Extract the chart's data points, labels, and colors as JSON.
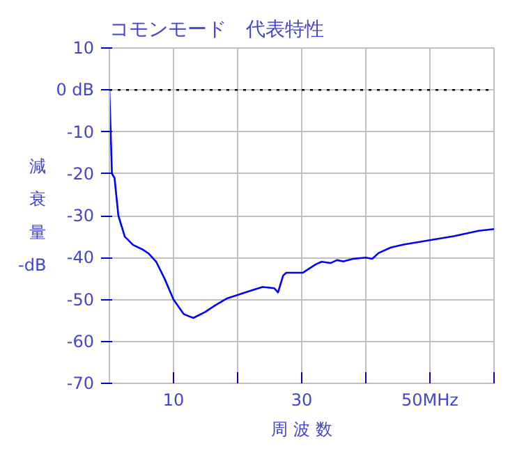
{
  "chart_data": {
    "type": "line",
    "title": "コモンモード　代表特性",
    "xlabel": "周 波 数",
    "ylabel": "減衰量 -dB",
    "x": [
      0,
      0.2,
      0.4,
      0.8,
      1.4,
      2.4,
      3.7,
      5.1,
      6.1,
      7.3,
      8.6,
      10,
      11.6,
      13.1,
      14.9,
      16.5,
      18.4,
      20.4,
      22.4,
      23.9,
      25.7,
      26.3,
      27.1,
      27.6,
      30.2,
      32.2,
      33.1,
      34.5,
      35.5,
      36.5,
      38,
      40,
      41,
      42,
      43.9,
      45.9,
      49.8,
      53.7,
      57.6,
      60
    ],
    "series": [
      {
        "color": "#0000ff",
        "values": [
          0,
          -10,
          -20,
          -21,
          -30,
          -35,
          -37,
          -38,
          -39,
          -41,
          -45,
          -50,
          -53.5,
          -54.4,
          -53,
          -51.4,
          -49.7,
          -48.7,
          -47.7,
          -47,
          -47.3,
          -48.3,
          -44.3,
          -43.6,
          -43.6,
          -41.6,
          -41,
          -41.3,
          -40.6,
          -40.9,
          -40.3,
          -40,
          -40.3,
          -38.9,
          -37.6,
          -36.9,
          -35.9,
          -34.9,
          -33.6,
          -33.2
        ]
      }
    ],
    "xlim": [
      0,
      60
    ],
    "ylim": [
      -70,
      10
    ],
    "xticks": [
      {
        "value": 10,
        "label": "10"
      },
      {
        "value": 20,
        "label": null
      },
      30,
      {
        "value": 40,
        "label": null
      },
      {
        "value": 50,
        "label": "50MHz"
      },
      {
        "value": 60,
        "label": null
      }
    ],
    "yticks": [
      10,
      {
        "value": 0,
        "label": "0 dB"
      },
      -10,
      -20,
      -30,
      -40,
      -50,
      -60,
      -70
    ],
    "ref_lines": [
      {
        "axis": "y",
        "value": 0,
        "label": null,
        "color": "#000000",
        "line_style": "dotted"
      }
    ],
    "grid": true,
    "marker": "none",
    "line_style": "solid"
  }
}
